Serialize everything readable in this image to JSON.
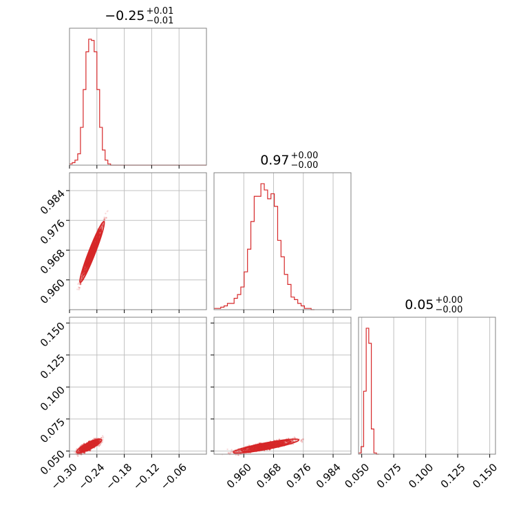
{
  "chart_data": {
    "type": "corner",
    "colors": {
      "series": "#d62728",
      "frame": "#808080",
      "grid": "#c0c0c0"
    },
    "grid": true,
    "parameters": [
      {
        "title": {
          "base": "−0.25",
          "upper": "+0.01",
          "lower": "−0.01"
        },
        "range": [
          -0.3,
          0.0
        ],
        "ticks": [
          -0.3,
          -0.24,
          -0.18,
          -0.12,
          -0.06
        ],
        "tick_labels": [
          "−0.30",
          "−0.24",
          "−0.18",
          "−0.12",
          "−0.06"
        ]
      },
      {
        "title": {
          "base": "0.97",
          "upper": "+0.00",
          "lower": "−0.00"
        },
        "range": [
          0.952,
          0.9888
        ],
        "ticks": [
          0.96,
          0.968,
          0.976,
          0.984
        ],
        "tick_labels": [
          "0.960",
          "0.968",
          "0.976",
          "0.984"
        ]
      },
      {
        "title": {
          "base": "0.05",
          "upper": "+0.00",
          "lower": "−0.00"
        },
        "range": [
          0.0475,
          0.1545
        ],
        "ticks": [
          0.05,
          0.075,
          0.1,
          0.125,
          0.15
        ],
        "tick_labels": [
          "0.050",
          "0.075",
          "0.100",
          "0.125",
          "0.150"
        ]
      }
    ],
    "histograms": [
      {
        "bin_edges": [
          -0.3,
          -0.294,
          -0.288,
          -0.282,
          -0.276,
          -0.27,
          -0.264,
          -0.258,
          -0.252,
          -0.246,
          -0.24,
          -0.234,
          -0.228,
          -0.222,
          -0.216,
          -0.21,
          -0.204,
          -0.198,
          -0.192,
          -0.186,
          -0.18,
          -0.174,
          -0.168,
          -0.162,
          -0.156,
          -0.15,
          -0.144,
          -0.138,
          -0.132,
          -0.126,
          -0.12,
          -0.114,
          -0.108,
          -0.102,
          -0.096,
          -0.09,
          -0.084,
          -0.078,
          -0.072,
          -0.066,
          -0.06,
          -0.054,
          -0.048,
          -0.042,
          -0.036,
          -0.03,
          -0.024,
          -0.018,
          -0.012,
          -0.006,
          0.0
        ],
        "counts": [
          1,
          2,
          4,
          9,
          30,
          60,
          90,
          100,
          99,
          90,
          60,
          30,
          12,
          4,
          1,
          0,
          0,
          0,
          0,
          0,
          0,
          0,
          0,
          0,
          0,
          0,
          0,
          0,
          0,
          0,
          0,
          0,
          0,
          0,
          0,
          0,
          0,
          0,
          0,
          0,
          0,
          0,
          0,
          0,
          0,
          0,
          0,
          0,
          0,
          0
        ]
      },
      {
        "bin_edges": [
          0.952,
          0.9529,
          0.9538,
          0.9547,
          0.9556,
          0.9565,
          0.9574,
          0.9583,
          0.9592,
          0.9601,
          0.961,
          0.9619,
          0.9628,
          0.9637,
          0.9646,
          0.9655,
          0.9664,
          0.9673,
          0.9682,
          0.9691,
          0.97,
          0.9709,
          0.9718,
          0.9727,
          0.9736,
          0.9745,
          0.9754,
          0.9763,
          0.9772,
          0.9781,
          0.979
        ],
        "counts": [
          1,
          1,
          2,
          3,
          5,
          5,
          9,
          12,
          18,
          30,
          48,
          70,
          90,
          90,
          100,
          95,
          88,
          92,
          82,
          55,
          42,
          28,
          20,
          10,
          8,
          5,
          3,
          1,
          1,
          0
        ]
      },
      {
        "bin_edges": [
          0.0475,
          0.0495,
          0.0515,
          0.0535,
          0.0555,
          0.0575,
          0.0595,
          0.0615,
          0.0635
        ],
        "counts": [
          1,
          6,
          50,
          100,
          88,
          20,
          1,
          0
        ]
      }
    ],
    "scatter": [
      {
        "x_param": 0,
        "y_param": 1,
        "x_range": [
          -0.286,
          -0.215
        ],
        "y": {
          "slope": 0.315,
          "intercept": 1.0464,
          "spread": 0.0007
        }
      },
      {
        "x_param": 0,
        "y_param": 2,
        "x_range": [
          -0.294,
          -0.22
        ],
        "y": {
          "slope": 0.18,
          "intercept": 0.1002,
          "spread": 0.0015
        }
      },
      {
        "x_param": 1,
        "y_param": 2,
        "x_range": [
          0.954,
          0.978
        ],
        "y": {
          "slope": 0.55,
          "intercept": -0.4775,
          "spread": 0.0012
        }
      }
    ]
  }
}
